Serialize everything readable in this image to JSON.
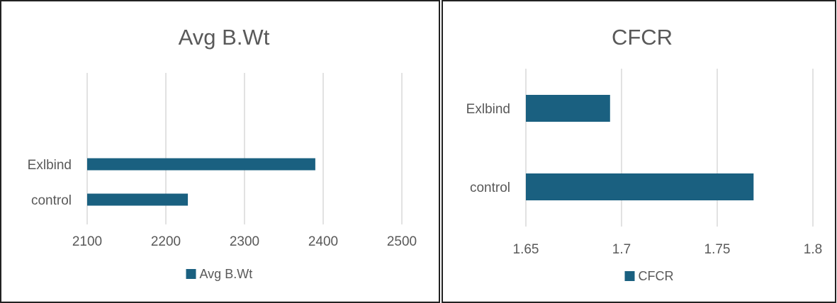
{
  "colors": {
    "bar": "#1a6080",
    "grid": "#d9d9d9",
    "text": "#595959",
    "border": "#222222"
  },
  "chart_data": [
    {
      "type": "bar",
      "orientation": "horizontal",
      "title": "Avg B.Wt",
      "categories": [
        "Exlbind",
        "control"
      ],
      "series": [
        {
          "name": "Avg B.Wt",
          "values": [
            2390,
            2228
          ]
        }
      ],
      "xlim": [
        2100,
        2500
      ],
      "xticks": [
        "2100",
        "2200",
        "2300",
        "2400",
        "2500"
      ],
      "grid": true,
      "legend": "bottom"
    },
    {
      "type": "bar",
      "orientation": "horizontal",
      "title": "CFCR",
      "categories": [
        "Exlbind",
        "control"
      ],
      "series": [
        {
          "name": "CFCR",
          "values": [
            1.694,
            1.769
          ]
        }
      ],
      "xlim": [
        1.65,
        1.8
      ],
      "xticks": [
        "1.65",
        "1.7",
        "1.75",
        "1.8"
      ],
      "grid": true,
      "legend": "bottom"
    }
  ]
}
